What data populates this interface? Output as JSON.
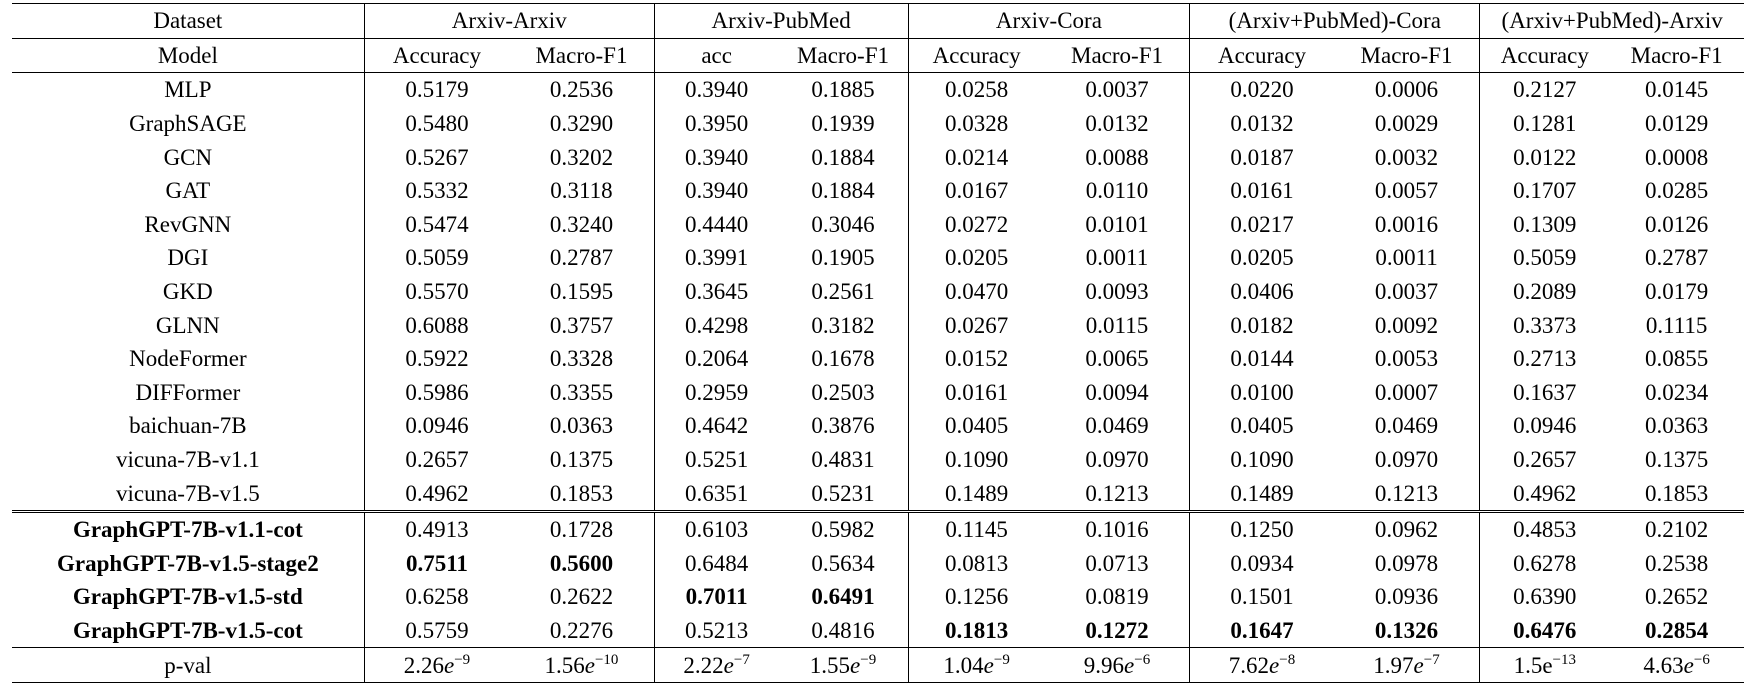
{
  "header": {
    "dataset_label": "Dataset",
    "model_label": "Model",
    "groups": [
      {
        "name": "Arxiv-Arxiv",
        "metrics": [
          "Accuracy",
          "Macro-F1"
        ]
      },
      {
        "name": "Arxiv-PubMed",
        "metrics": [
          "acc",
          "Macro-F1"
        ]
      },
      {
        "name": "Arxiv-Cora",
        "metrics": [
          "Accuracy",
          "Macro-F1"
        ]
      },
      {
        "name": "(Arxiv+PubMed)-Cora",
        "metrics": [
          "Accuracy",
          "Macro-F1"
        ]
      },
      {
        "name": "(Arxiv+PubMed)-Arxiv",
        "metrics": [
          "Accuracy",
          "Macro-F1"
        ]
      }
    ]
  },
  "rows": [
    {
      "model": "MLP",
      "bold_model": false,
      "values": [
        "0.5179",
        "0.2536",
        "0.3940",
        "0.1885",
        "0.0258",
        "0.0037",
        "0.0220",
        "0.0006",
        "0.2127",
        "0.0145"
      ],
      "bold": []
    },
    {
      "model": "GraphSAGE",
      "bold_model": false,
      "values": [
        "0.5480",
        "0.3290",
        "0.3950",
        "0.1939",
        "0.0328",
        "0.0132",
        "0.0132",
        "0.0029",
        "0.1281",
        "0.0129"
      ],
      "bold": []
    },
    {
      "model": "GCN",
      "bold_model": false,
      "values": [
        "0.5267",
        "0.3202",
        "0.3940",
        "0.1884",
        "0.0214",
        "0.0088",
        "0.0187",
        "0.0032",
        "0.0122",
        "0.0008"
      ],
      "bold": []
    },
    {
      "model": "GAT",
      "bold_model": false,
      "values": [
        "0.5332",
        "0.3118",
        "0.3940",
        "0.1884",
        "0.0167",
        "0.0110",
        "0.0161",
        "0.0057",
        "0.1707",
        "0.0285"
      ],
      "bold": []
    },
    {
      "model": "RevGNN",
      "bold_model": false,
      "values": [
        "0.5474",
        "0.3240",
        "0.4440",
        "0.3046",
        "0.0272",
        "0.0101",
        "0.0217",
        "0.0016",
        "0.1309",
        "0.0126"
      ],
      "bold": []
    },
    {
      "model": "DGI",
      "bold_model": false,
      "values": [
        "0.5059",
        "0.2787",
        "0.3991",
        "0.1905",
        "0.0205",
        "0.0011",
        "0.0205",
        "0.0011",
        "0.5059",
        "0.2787"
      ],
      "bold": []
    },
    {
      "model": "GKD",
      "bold_model": false,
      "values": [
        "0.5570",
        "0.1595",
        "0.3645",
        "0.2561",
        "0.0470",
        "0.0093",
        "0.0406",
        "0.0037",
        "0.2089",
        "0.0179"
      ],
      "bold": []
    },
    {
      "model": "GLNN",
      "bold_model": false,
      "values": [
        "0.6088",
        "0.3757",
        "0.4298",
        "0.3182",
        "0.0267",
        "0.0115",
        "0.0182",
        "0.0092",
        "0.3373",
        "0.1115"
      ],
      "bold": []
    },
    {
      "model": "NodeFormer",
      "bold_model": false,
      "values": [
        "0.5922",
        "0.3328",
        "0.2064",
        "0.1678",
        "0.0152",
        "0.0065",
        "0.0144",
        "0.0053",
        "0.2713",
        "0.0855"
      ],
      "bold": []
    },
    {
      "model": "DIFFormer",
      "bold_model": false,
      "values": [
        "0.5986",
        "0.3355",
        "0.2959",
        "0.2503",
        "0.0161",
        "0.0094",
        "0.0100",
        "0.0007",
        "0.1637",
        "0.0234"
      ],
      "bold": []
    },
    {
      "model": "baichuan-7B",
      "bold_model": false,
      "values": [
        "0.0946",
        "0.0363",
        "0.4642",
        "0.3876",
        "0.0405",
        "0.0469",
        "0.0405",
        "0.0469",
        "0.0946",
        "0.0363"
      ],
      "bold": []
    },
    {
      "model": "vicuna-7B-v1.1",
      "bold_model": false,
      "values": [
        "0.2657",
        "0.1375",
        "0.5251",
        "0.4831",
        "0.1090",
        "0.0970",
        "0.1090",
        "0.0970",
        "0.2657",
        "0.1375"
      ],
      "bold": []
    },
    {
      "model": "vicuna-7B-v1.5",
      "bold_model": false,
      "values": [
        "0.4962",
        "0.1853",
        "0.6351",
        "0.5231",
        "0.1489",
        "0.1213",
        "0.1489",
        "0.1213",
        "0.4962",
        "0.1853"
      ],
      "bold": []
    },
    {
      "model": "GraphGPT-7B-v1.1-cot",
      "bold_model": true,
      "values": [
        "0.4913",
        "0.1728",
        "0.6103",
        "0.5982",
        "0.1145",
        "0.1016",
        "0.1250",
        "0.0962",
        "0.4853",
        "0.2102"
      ],
      "bold": []
    },
    {
      "model": "GraphGPT-7B-v1.5-stage2",
      "bold_model": true,
      "values": [
        "0.7511",
        "0.5600",
        "0.6484",
        "0.5634",
        "0.0813",
        "0.0713",
        "0.0934",
        "0.0978",
        "0.6278",
        "0.2538"
      ],
      "bold": [
        0,
        1
      ]
    },
    {
      "model": "GraphGPT-7B-v1.5-std",
      "bold_model": true,
      "values": [
        "0.6258",
        "0.2622",
        "0.7011",
        "0.6491",
        "0.1256",
        "0.0819",
        "0.1501",
        "0.0936",
        "0.6390",
        "0.2652"
      ],
      "bold": [
        2,
        3
      ]
    },
    {
      "model": "GraphGPT-7B-v1.5-cot",
      "bold_model": true,
      "values": [
        "0.5759",
        "0.2276",
        "0.5213",
        "0.4816",
        "0.1813",
        "0.1272",
        "0.1647",
        "0.1326",
        "0.6476",
        "0.2854"
      ],
      "bold": [
        4,
        5,
        6,
        7,
        8,
        9
      ]
    }
  ],
  "pval": {
    "label": "p-val",
    "cells": [
      {
        "mantissa": "2.26",
        "e": "e",
        "exp": "−9"
      },
      {
        "mantissa": "1.56",
        "e": "e",
        "exp": "−10"
      },
      {
        "mantissa": "2.22",
        "e": "e",
        "exp": "−7"
      },
      {
        "mantissa": "1.55",
        "e": "e",
        "exp": "−9"
      },
      {
        "mantissa": "1.04",
        "e": "e",
        "exp": "−9"
      },
      {
        "mantissa": "9.96",
        "e": "e",
        "exp": "−6"
      },
      {
        "mantissa": "7.62",
        "e": "e",
        "exp": "−8"
      },
      {
        "mantissa": "1.97",
        "e": "e",
        "exp": "−7"
      },
      {
        "mantissa": "1.5e",
        "e": "",
        "exp": "−13"
      },
      {
        "mantissa": "4.63",
        "e": "e",
        "exp": "−6"
      }
    ]
  }
}
